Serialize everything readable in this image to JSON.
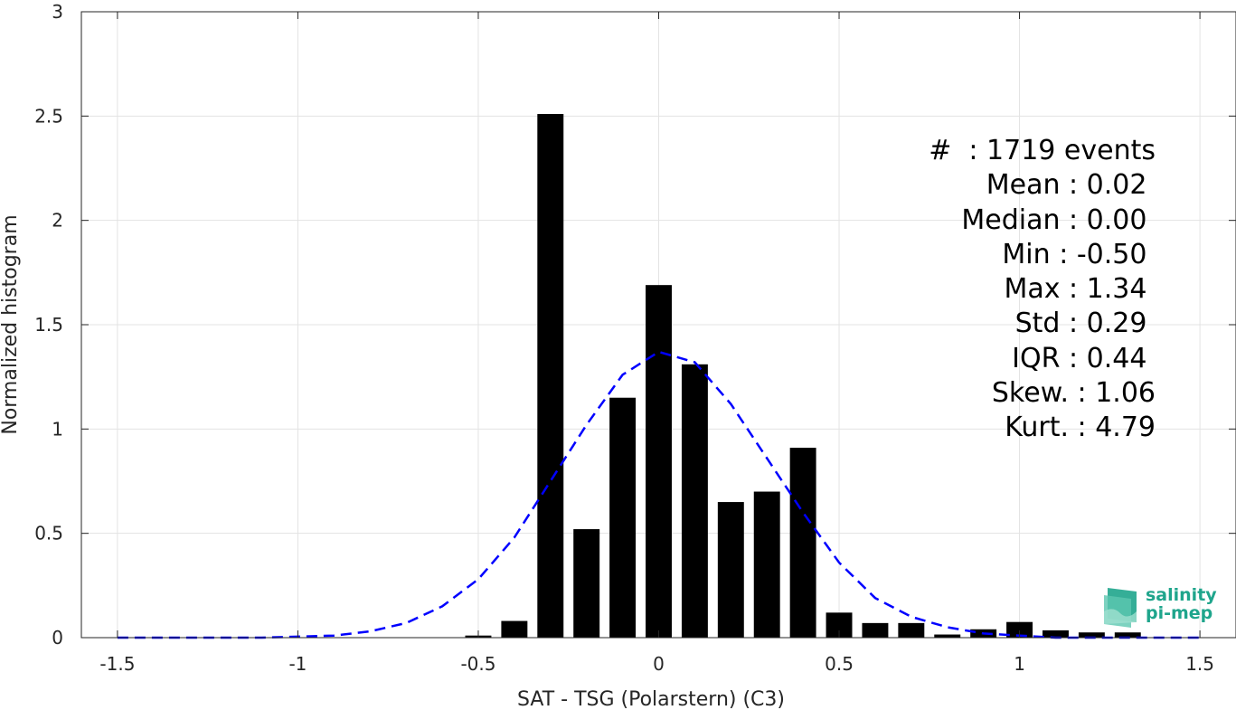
{
  "chart_data": {
    "type": "bar",
    "xlabel": "SAT - TSG (Polarstern) (C3)",
    "ylabel": "Normalized histogram",
    "xlim": [
      -1.6,
      1.6
    ],
    "ylim": [
      0,
      3
    ],
    "xticks": [
      -1.5,
      -1,
      -0.5,
      0,
      0.5,
      1,
      1.5
    ],
    "xtick_labels": [
      "-1.5",
      "-1",
      "-0.5",
      "0",
      "0.5",
      "1",
      "1.5"
    ],
    "yticks": [
      0,
      0.5,
      1,
      1.5,
      2,
      2.5,
      3
    ],
    "ytick_labels": [
      "0",
      "0.5",
      "1",
      "1.5",
      "2",
      "2.5",
      "3"
    ],
    "grid": true,
    "bar_color": "#000000",
    "bars": {
      "centers": [
        -0.5,
        -0.4,
        -0.3,
        -0.2,
        -0.1,
        0.0,
        0.1,
        0.2,
        0.3,
        0.4,
        0.5,
        0.6,
        0.7,
        0.8,
        0.9,
        1.0,
        1.1,
        1.2,
        1.3
      ],
      "values": [
        0.01,
        0.08,
        2.51,
        0.52,
        1.15,
        1.69,
        1.31,
        0.65,
        0.7,
        0.91,
        0.12,
        0.07,
        0.07,
        0.015,
        0.04,
        0.075,
        0.035,
        0.025,
        0.025
      ]
    },
    "fit_curve": {
      "style": "dashed",
      "color": "#0000ff",
      "x": [
        -1.5,
        -1.4,
        -1.3,
        -1.2,
        -1.1,
        -1.0,
        -0.9,
        -0.8,
        -0.7,
        -0.6,
        -0.5,
        -0.4,
        -0.3,
        -0.2,
        -0.1,
        0.0,
        0.1,
        0.2,
        0.3,
        0.4,
        0.5,
        0.6,
        0.7,
        0.8,
        0.9,
        1.0,
        1.1,
        1.2,
        1.3,
        1.4,
        1.5
      ],
      "y": [
        0.0,
        0.0,
        0.0,
        0.0,
        0.0,
        0.005,
        0.01,
        0.03,
        0.07,
        0.15,
        0.28,
        0.48,
        0.75,
        1.02,
        1.26,
        1.37,
        1.32,
        1.12,
        0.86,
        0.6,
        0.36,
        0.19,
        0.1,
        0.05,
        0.02,
        0.01,
        0.0,
        0.0,
        0.0,
        0.0,
        0.0
      ]
    }
  },
  "stats": [
    "#  : 1719 events",
    "Mean : 0.02 ",
    "Median : 0.00 ",
    "Min : -0.50 ",
    "Max : 1.34 ",
    "Std : 0.29 ",
    "IQR : 0.44 ",
    "Skew. : 1.06",
    "Kurt. : 4.79"
  ],
  "logo": {
    "line1": "salinity",
    "line2": "pi-mep",
    "color": "#1fa58c"
  }
}
